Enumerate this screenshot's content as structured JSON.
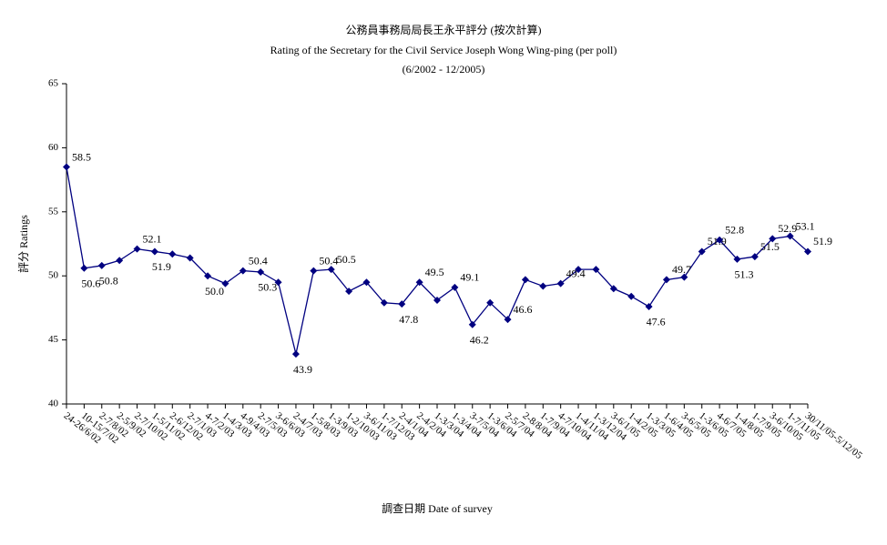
{
  "chart_data": {
    "type": "line",
    "title": "公務員事務局局長王永平評分 (按次計算)",
    "subtitle": "Rating of the Secretary for the Civil Service Joseph Wong Wing-ping  (per poll)",
    "period": "(6/2002 - 12/2005)",
    "y_label": "評分 Ratings",
    "x_label": "調查日期 Date of survey",
    "categories": [
      "24-26/6/02",
      "10-15/7/02",
      "2-7/8/02",
      "2-5/9/02",
      "2-7/10/02",
      "1-5/11/02",
      "2-6/12/02",
      "2-7/1/03",
      "4-7/2/03",
      "1-4/3/03",
      "4-9/4/03",
      "2-7/5/03",
      "3-6/6/03",
      "2-4/7/03",
      "1-5/8/03",
      "1-3/9/03",
      "1-2/10/03",
      "3-6/11/03",
      "1-7/12/03",
      "2-4/1/04",
      "2-4/2/04",
      "1-3/3/04",
      "1-3/4/04",
      "3-7/5/04",
      "1-3/6/04",
      "2-5/7/04",
      "2-8/8/04",
      "1-7/9/04",
      "4-7/10/04",
      "1-4/11/04",
      "1-3/12/04",
      "3-6/1/05",
      "1-4/2/05",
      "1-3/3/05",
      "1-6/4/05",
      "3-6/5/05",
      "1-3/6/05",
      "4-6/7/05",
      "1-4/8/05",
      "1-7/9/05",
      "3-6/10/05",
      "1-7/11/05",
      "30/11/05-5/12/05"
    ],
    "series": [
      {
        "name": "評分 Ratings",
        "color": "#000080",
        "values": [
          58.5,
          50.6,
          50.8,
          51.2,
          52.1,
          51.9,
          51.7,
          51.4,
          50.0,
          49.4,
          50.4,
          50.3,
          49.5,
          43.9,
          50.4,
          50.5,
          48.8,
          49.5,
          47.9,
          47.8,
          49.5,
          48.1,
          49.1,
          46.2,
          47.9,
          46.6,
          49.7,
          49.2,
          49.4,
          50.5,
          50.5,
          49.0,
          48.4,
          47.6,
          49.7,
          49.9,
          51.9,
          52.8,
          51.3,
          51.5,
          52.9,
          53.1,
          51.9
        ],
        "value_labels": [
          "58.5",
          "50.6",
          "50.8",
          null,
          "52.1",
          "51.9",
          null,
          null,
          "50.0",
          null,
          "50.4",
          "50.3",
          null,
          "43.9",
          "50.4",
          "50.5",
          null,
          null,
          null,
          "47.8",
          "49.5",
          null,
          "49.1",
          "46.2",
          null,
          "46.6",
          null,
          null,
          "49.4",
          null,
          null,
          null,
          null,
          "47.6",
          "49.7",
          null,
          "51.9",
          "52.8",
          "51.3",
          "51.5",
          "52.9",
          "53.1",
          "51.9"
        ]
      }
    ],
    "ylim": [
      40,
      65
    ],
    "yticks": [
      40,
      45,
      50,
      55,
      60,
      65
    ],
    "grid": false
  }
}
